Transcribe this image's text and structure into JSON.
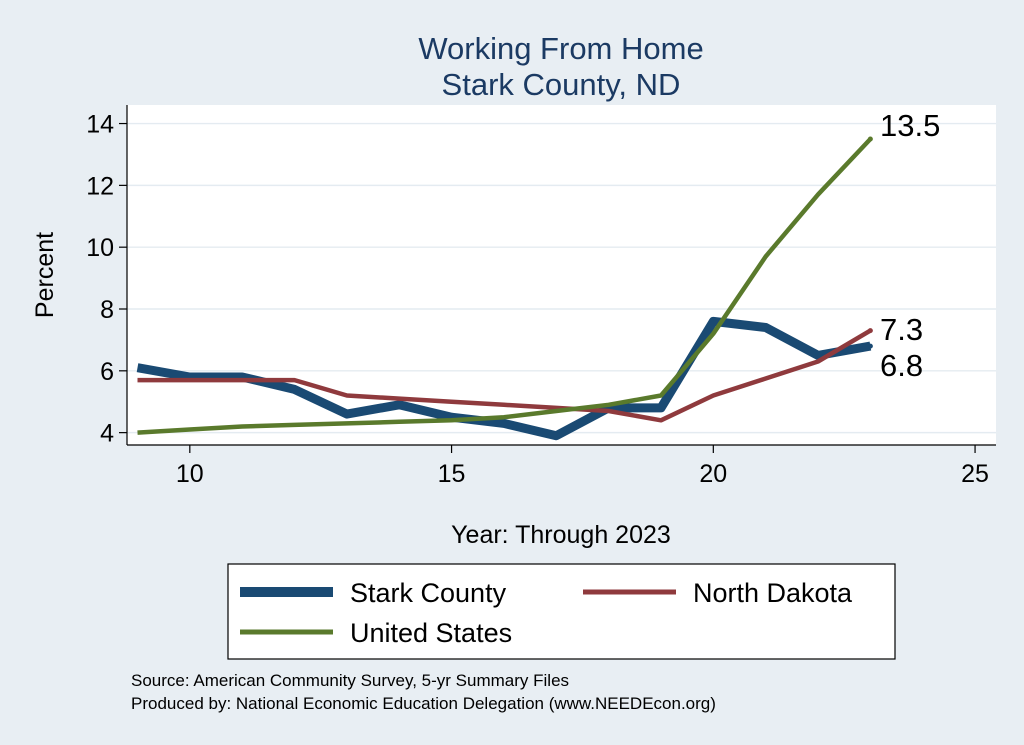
{
  "chart_data": {
    "type": "line",
    "title": [
      "Working From Home",
      "Stark County, ND"
    ],
    "xlabel": "Year: Through 2023",
    "ylabel": "Percent",
    "xlim": [
      8.8,
      25.4
    ],
    "ylim": [
      3.6,
      14.6
    ],
    "xticks": [
      10,
      15,
      20,
      25
    ],
    "yticks": [
      4,
      6,
      8,
      10,
      12,
      14
    ],
    "grid": true,
    "legend_position": "bottom",
    "series": [
      {
        "name": "Stark County",
        "color": "#1a4a73",
        "x": [
          9,
          10,
          11,
          12,
          13,
          14,
          15,
          16,
          17,
          18,
          19,
          20,
          21,
          22,
          23
        ],
        "y": [
          6.1,
          5.8,
          5.8,
          5.4,
          4.6,
          4.9,
          4.5,
          4.3,
          3.9,
          4.8,
          4.8,
          7.6,
          7.4,
          6.5,
          6.8
        ]
      },
      {
        "name": "North Dakota",
        "color": "#8f3a3d",
        "x": [
          9,
          10,
          11,
          12,
          13,
          14,
          15,
          16,
          17,
          18,
          19,
          20,
          21,
          22,
          23
        ],
        "y": [
          5.7,
          5.7,
          5.7,
          5.7,
          5.2,
          5.1,
          5.0,
          4.9,
          4.8,
          4.7,
          4.4,
          5.2,
          5.75,
          6.3,
          7.3
        ]
      },
      {
        "name": "United States",
        "color": "#5a7a2c",
        "x": [
          9,
          10,
          11,
          12,
          13,
          14,
          15,
          16,
          17,
          18,
          19,
          20,
          21,
          22,
          23
        ],
        "y": [
          4.0,
          4.1,
          4.2,
          4.25,
          4.3,
          4.35,
          4.4,
          4.5,
          4.7,
          4.9,
          5.2,
          7.2,
          9.7,
          11.7,
          13.5
        ]
      }
    ],
    "end_labels": [
      {
        "text": "13.5",
        "series": "United States"
      },
      {
        "text": "7.3",
        "series": "North Dakota"
      },
      {
        "text": "6.8",
        "series": "Stark County"
      }
    ],
    "source_lines": [
      "Source: American Community Survey, 5-yr Summary Files",
      "Produced by: National Economic Education Delegation (www.NEEDEcon.org)"
    ]
  }
}
